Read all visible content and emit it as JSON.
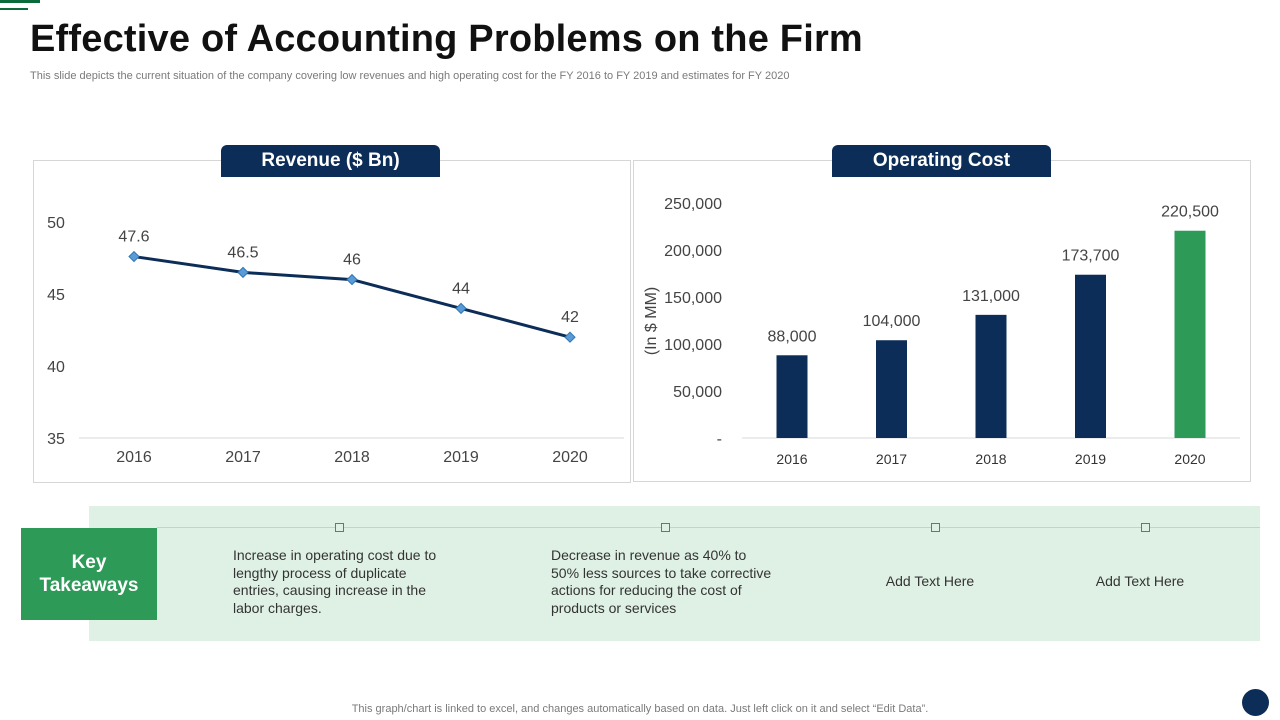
{
  "header": {
    "title": "Effective of Accounting Problems on the Firm",
    "subtitle": "This slide depicts the current situation of the company covering low revenues and high operating cost for the FY 2016 to FY 2019 and estimates for FY 2020"
  },
  "chart_data": [
    {
      "type": "line",
      "title": "Revenue ($ Bn)",
      "categories": [
        "2016",
        "2017",
        "2018",
        "2019",
        "2020"
      ],
      "values": [
        47.6,
        46.5,
        46,
        44,
        42
      ],
      "data_labels": [
        "47.6",
        "46.5",
        "46",
        "44",
        "42"
      ],
      "ylim": [
        35,
        50
      ],
      "yticks": [
        "50",
        "45",
        "40",
        "35"
      ],
      "ytick_values": [
        50,
        45,
        40,
        35
      ],
      "xlabel": "",
      "ylabel": "",
      "line_color": "#0c2d57",
      "marker_color": "#5b9bd5"
    },
    {
      "type": "bar",
      "title": "Operating Cost",
      "categories": [
        "2016",
        "2017",
        "2018",
        "2019",
        "2020"
      ],
      "values": [
        88000,
        104000,
        131000,
        173700,
        220500
      ],
      "data_labels": [
        "88,000",
        "104,000",
        "131,000",
        "173,700",
        "220,500"
      ],
      "ylim": [
        0,
        250000
      ],
      "yticks": [
        "250,000",
        "200,000",
        "150,000",
        "100,000",
        "50,000",
        "-"
      ],
      "ytick_values": [
        250000,
        200000,
        150000,
        100000,
        50000,
        0
      ],
      "ylabel": "(In $ MM)",
      "xlabel": "",
      "bar_colors": [
        "#0c2d57",
        "#0c2d57",
        "#0c2d57",
        "#0c2d57",
        "#2e9a57"
      ]
    }
  ],
  "takeaways": {
    "label_line1": "Key",
    "label_line2": "Takeaways",
    "items": [
      "Increase in operating cost due to lengthy process of duplicate entries, causing increase in the labor charges.",
      "Decrease in revenue as 40%  to 50%  less sources to take corrective actions for reducing the cost of products or services",
      "Add Text Here",
      "Add Text Here"
    ]
  },
  "footer": {
    "note": "This graph/chart is linked to excel, and changes automatically based on data. Just left click on it and select “Edit Data”."
  },
  "colors": {
    "navy": "#0c2d57",
    "green": "#2e9a57",
    "light_green": "#dff1e4"
  }
}
